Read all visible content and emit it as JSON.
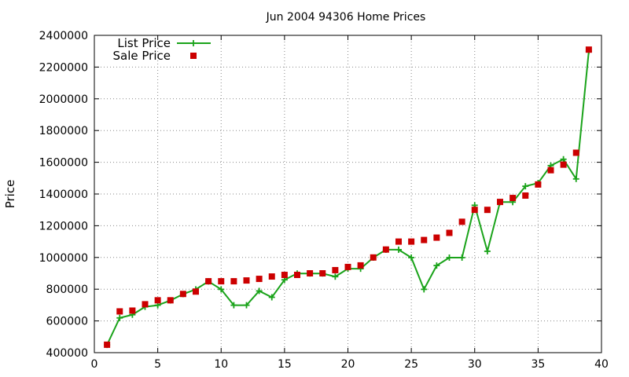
{
  "chart_data": {
    "type": "line",
    "title": "Jun 2004 94306 Home Prices",
    "xlabel": "",
    "ylabel": "Price",
    "xlim": [
      0,
      40
    ],
    "ylim": [
      400000,
      2400000
    ],
    "x_ticks": [
      0,
      5,
      10,
      15,
      20,
      25,
      30,
      35,
      40
    ],
    "y_ticks": [
      400000,
      600000,
      800000,
      1000000,
      1200000,
      1400000,
      1600000,
      1800000,
      2000000,
      2200000,
      2400000
    ],
    "grid": true,
    "legend_position": "top-left",
    "series": [
      {
        "name": "List Price",
        "style": "line-with-plus-markers",
        "color": "#1aa31a",
        "x": [
          1,
          2,
          3,
          4,
          5,
          6,
          7,
          8,
          9,
          10,
          11,
          12,
          13,
          14,
          15,
          16,
          17,
          18,
          19,
          20,
          21,
          22,
          23,
          24,
          25,
          26,
          27,
          28,
          29,
          30,
          31,
          32,
          33,
          34,
          35,
          36,
          37,
          38,
          39
        ],
        "values": [
          449000,
          619000,
          639000,
          689000,
          699000,
          729000,
          769000,
          799000,
          849000,
          799000,
          699000,
          699000,
          789000,
          749000,
          859000,
          899000,
          899000,
          899000,
          879000,
          929000,
          929000,
          999000,
          1049000,
          1049000,
          999000,
          799000,
          949000,
          999000,
          999000,
          1329000,
          1039000,
          1349000,
          1349000,
          1449000,
          1469000,
          1579000,
          1619000,
          1495000,
          2300000
        ]
      },
      {
        "name": "Sale Price",
        "style": "square-markers",
        "color": "#cc0000",
        "x": [
          1,
          2,
          3,
          4,
          5,
          6,
          7,
          8,
          9,
          10,
          11,
          12,
          13,
          14,
          15,
          16,
          17,
          18,
          19,
          20,
          21,
          22,
          23,
          24,
          25,
          26,
          27,
          28,
          29,
          30,
          31,
          32,
          33,
          34,
          35,
          36,
          37,
          38,
          39
        ],
        "values": [
          450000,
          660000,
          665000,
          705000,
          730000,
          730000,
          770000,
          785000,
          850000,
          850000,
          850000,
          855000,
          865000,
          880000,
          890000,
          890000,
          900000,
          900000,
          920000,
          940000,
          950000,
          1000000,
          1050000,
          1100000,
          1100000,
          1110000,
          1125000,
          1155000,
          1225000,
          1300000,
          1300000,
          1350000,
          1375000,
          1390000,
          1460000,
          1550000,
          1585000,
          1660000,
          2310000
        ]
      }
    ]
  }
}
